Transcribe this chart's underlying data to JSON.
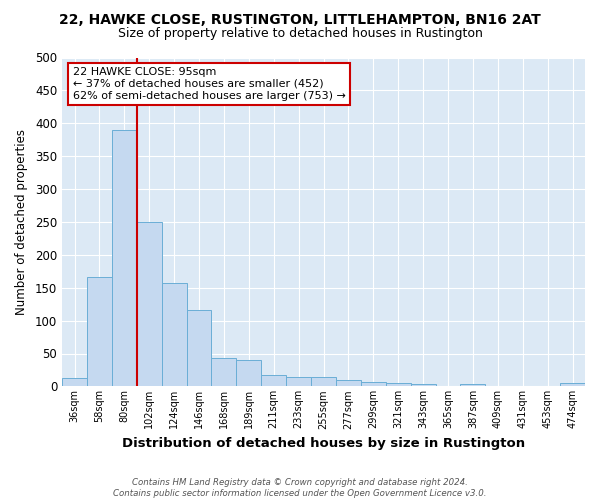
{
  "title1": "22, HAWKE CLOSE, RUSTINGTON, LITTLEHAMPTON, BN16 2AT",
  "title2": "Size of property relative to detached houses in Rustington",
  "xlabel": "Distribution of detached houses by size in Rustington",
  "ylabel": "Number of detached properties",
  "categories": [
    "36sqm",
    "58sqm",
    "80sqm",
    "102sqm",
    "124sqm",
    "146sqm",
    "168sqm",
    "189sqm",
    "211sqm",
    "233sqm",
    "255sqm",
    "277sqm",
    "299sqm",
    "321sqm",
    "343sqm",
    "365sqm",
    "387sqm",
    "409sqm",
    "431sqm",
    "453sqm",
    "474sqm"
  ],
  "values": [
    13,
    167,
    390,
    250,
    157,
    116,
    43,
    40,
    18,
    14,
    14,
    9,
    6,
    5,
    4,
    0,
    4,
    1,
    1,
    0,
    5
  ],
  "bar_color": "#c5d9f0",
  "bar_edge_color": "#6aaed6",
  "vline_color": "#cc0000",
  "annotation_text": "22 HAWKE CLOSE: 95sqm\n← 37% of detached houses are smaller (452)\n62% of semi-detached houses are larger (753) →",
  "annotation_box_color": "#ffffff",
  "annotation_box_edge": "#cc0000",
  "footnote": "Contains HM Land Registry data © Crown copyright and database right 2024.\nContains public sector information licensed under the Open Government Licence v3.0.",
  "fig_bg_color": "#ffffff",
  "plot_bg_color": "#dce9f5",
  "grid_color": "#ffffff",
  "ylim": [
    0,
    500
  ],
  "yticks": [
    0,
    50,
    100,
    150,
    200,
    250,
    300,
    350,
    400,
    450,
    500
  ]
}
